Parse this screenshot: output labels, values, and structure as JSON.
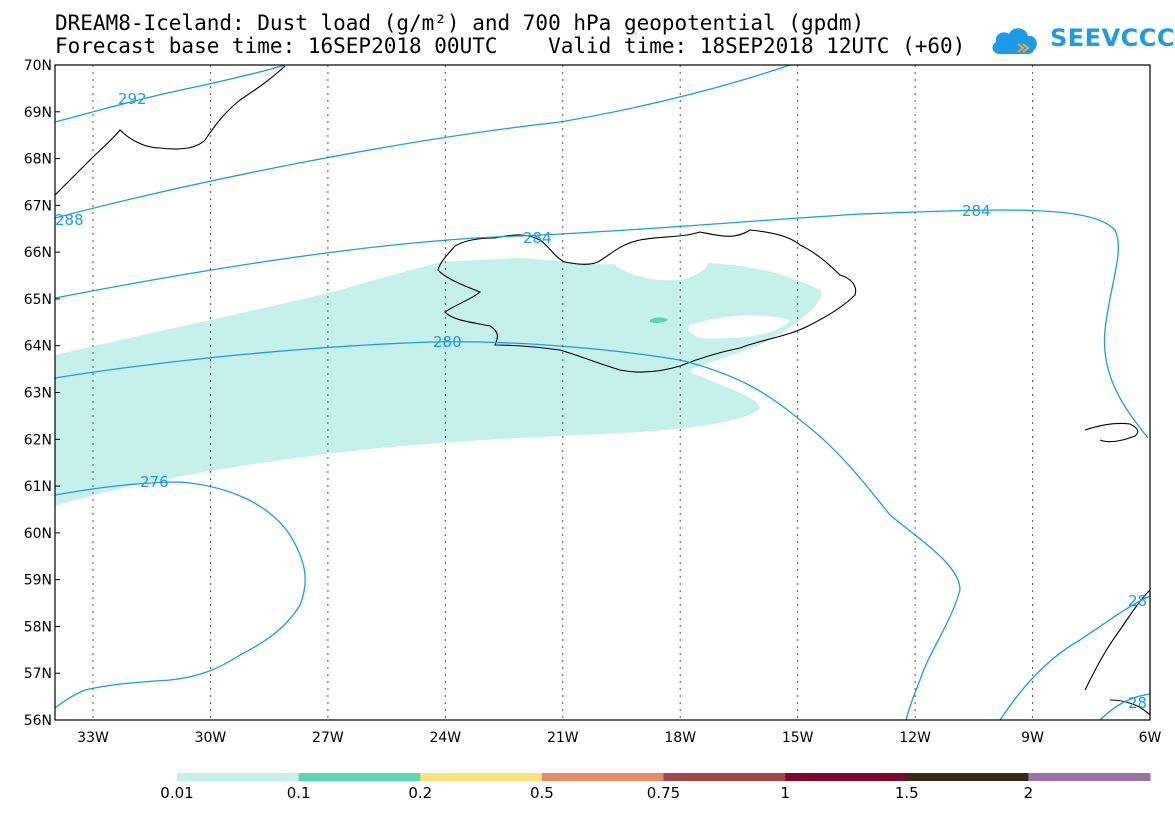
{
  "title_line1": "DREAM8-Iceland: Dust load (g/m²) and 700 hPa geopotential (gpdm)",
  "title_line2": "Forecast base time: 16SEP2018 00UTC    Valid time: 18SEP2018 12UTC (+60)",
  "logo_text": "SEEVCCC",
  "lat_labels": [
    "70N",
    "69N",
    "68N",
    "67N",
    "66N",
    "65N",
    "64N",
    "63N",
    "62N",
    "61N",
    "60N",
    "59N",
    "58N",
    "57N",
    "56N"
  ],
  "lon_labels": [
    "33W",
    "30W",
    "27W",
    "24W",
    "21W",
    "18W",
    "15W",
    "12W",
    "9W",
    "6W"
  ],
  "contour_labels": [
    "292",
    "284",
    "284",
    "280",
    "276",
    "288",
    "28",
    "28"
  ],
  "colorbar": {
    "labels": [
      "0.01",
      "0.1",
      "0.2",
      "0.5",
      "0.75",
      "1",
      "1.5",
      "2"
    ],
    "colors": [
      "#c6f0ea",
      "#5ad8b5",
      "#f5e47a",
      "#e58a6a",
      "#a04a46",
      "#7a0a2e",
      "#3a2a18",
      "#9a72a6"
    ]
  },
  "colors": {
    "dust_light": "#c6f0ea",
    "dust_medium": "#5ad8b5",
    "contour": "#1e9be6",
    "coast": "#000000",
    "grid": "#555555"
  }
}
